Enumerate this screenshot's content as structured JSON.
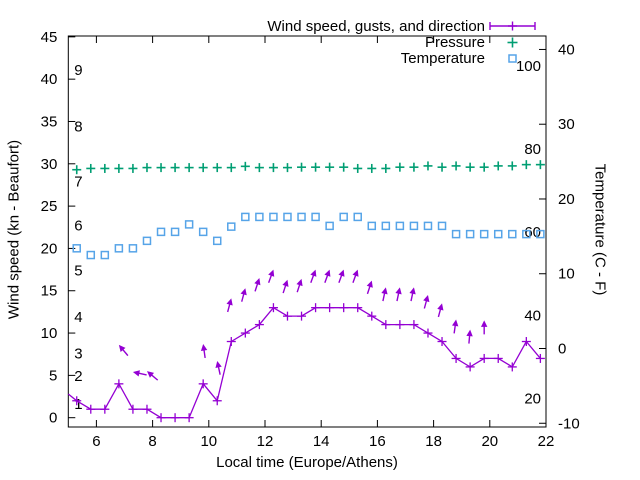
{
  "chart_data": {
    "type": "line",
    "title": "",
    "grid": false,
    "legend_position": "top-right-inside",
    "x_axis": {
      "label": "Local time (Europe/Athens)",
      "min": 5,
      "max": 22,
      "ticks": [
        6,
        8,
        10,
        12,
        14,
        16,
        18,
        20,
        22
      ]
    },
    "y_left": {
      "label": "Wind speed (kn - Beaufort)",
      "min": -1.1,
      "max": 45.1,
      "ticks": [
        0,
        5,
        10,
        15,
        20,
        25,
        30,
        35,
        40,
        45
      ],
      "beaufort_labels": [
        {
          "label": "1",
          "kn": 1.6
        },
        {
          "label": "2",
          "kn": 4.9
        },
        {
          "label": "3",
          "kn": 7.6
        },
        {
          "label": "4",
          "kn": 11.9
        },
        {
          "label": "5",
          "kn": 17.4
        },
        {
          "label": "6",
          "kn": 22.7
        },
        {
          "label": "7",
          "kn": 27.9
        },
        {
          "label": "8",
          "kn": 34.4
        },
        {
          "label": "9",
          "kn": 41.1
        }
      ]
    },
    "y_right": {
      "label": "Temperature (C - F)",
      "min": -10.5,
      "max": 41.8,
      "ticks": [
        -10,
        0,
        10,
        20,
        30,
        40
      ],
      "fahrenheit_labels": [
        {
          "label": "20",
          "f": 20
        },
        {
          "label": "40",
          "f": 40
        },
        {
          "label": "60",
          "f": 60
        },
        {
          "label": "80",
          "f": 80
        },
        {
          "label": "100",
          "f": 100
        }
      ]
    },
    "times": [
      5.3,
      5.8,
      6.3,
      6.8,
      7.3,
      7.8,
      8.3,
      8.8,
      9.3,
      9.8,
      10.3,
      10.8,
      11.3,
      11.8,
      12.3,
      12.8,
      13.3,
      13.8,
      14.3,
      14.8,
      15.3,
      15.8,
      16.3,
      16.8,
      17.3,
      17.8,
      18.3,
      18.8,
      19.3,
      19.8,
      20.3,
      20.8,
      21.3,
      21.8
    ],
    "series": [
      {
        "id": "wind",
        "name": "Wind speed, gusts, and direction",
        "color": "#9400d3",
        "axis": "left",
        "style": "line-with-cross-markers",
        "lead_point": {
          "t": 5.0,
          "kn": 2.8
        },
        "values_kn": [
          2,
          1,
          1,
          4,
          1,
          1,
          0,
          0,
          0,
          4,
          2,
          9,
          10,
          11,
          13,
          12,
          12,
          13,
          13,
          13,
          13,
          12,
          11,
          11,
          11,
          10,
          9,
          7,
          6,
          7,
          7,
          6,
          9,
          7
        ]
      },
      {
        "id": "pressure",
        "name": "Pressure",
        "color": "#009e73",
        "axis": "left",
        "style": "cross-markers",
        "plotted_level_kn": [
          29.3,
          29.45,
          29.45,
          29.45,
          29.45,
          29.55,
          29.55,
          29.55,
          29.55,
          29.55,
          29.55,
          29.55,
          29.7,
          29.55,
          29.55,
          29.55,
          29.6,
          29.6,
          29.6,
          29.6,
          29.45,
          29.45,
          29.45,
          29.6,
          29.6,
          29.75,
          29.6,
          29.75,
          29.6,
          29.6,
          29.75,
          29.75,
          29.9,
          29.9
        ]
      },
      {
        "id": "temperature",
        "name": "Temperature",
        "color": "#56a4e8",
        "axis": "right",
        "style": "open-square-markers",
        "values_c": [
          13.4,
          12.5,
          12.5,
          13.4,
          13.4,
          14.4,
          15.6,
          15.6,
          16.6,
          15.6,
          14.4,
          16.3,
          17.6,
          17.6,
          17.6,
          17.6,
          17.6,
          17.6,
          16.4,
          17.6,
          17.6,
          16.4,
          16.4,
          16.4,
          16.4,
          16.4,
          16.4,
          15.3,
          15.3,
          15.3,
          15.3,
          15.3,
          15.3,
          15.3
        ]
      }
    ],
    "wind_arrows": [
      {
        "t": 6.8,
        "tip_kn": 8.6,
        "angle_deg": -40
      },
      {
        "t": 7.3,
        "tip_kn": 5.4,
        "angle_deg": -78
      },
      {
        "t": 7.8,
        "tip_kn": 5.5,
        "angle_deg": -50
      },
      {
        "t": 9.8,
        "tip_kn": 8.7,
        "angle_deg": -8
      },
      {
        "t": 10.3,
        "tip_kn": 6.7,
        "angle_deg": -12
      },
      {
        "t": 10.8,
        "tip_kn": 14.1,
        "angle_deg": 15
      },
      {
        "t": 11.3,
        "tip_kn": 15.3,
        "angle_deg": 15
      },
      {
        "t": 11.8,
        "tip_kn": 16.5,
        "angle_deg": 18
      },
      {
        "t": 12.3,
        "tip_kn": 17.5,
        "angle_deg": 20
      },
      {
        "t": 12.8,
        "tip_kn": 16.3,
        "angle_deg": 18
      },
      {
        "t": 13.3,
        "tip_kn": 16.4,
        "angle_deg": 18
      },
      {
        "t": 13.8,
        "tip_kn": 17.5,
        "angle_deg": 20
      },
      {
        "t": 14.3,
        "tip_kn": 17.5,
        "angle_deg": 20
      },
      {
        "t": 14.8,
        "tip_kn": 17.5,
        "angle_deg": 20
      },
      {
        "t": 15.3,
        "tip_kn": 17.5,
        "angle_deg": 20
      },
      {
        "t": 15.8,
        "tip_kn": 16.2,
        "angle_deg": 18
      },
      {
        "t": 16.3,
        "tip_kn": 15.4,
        "angle_deg": 12
      },
      {
        "t": 16.8,
        "tip_kn": 15.4,
        "angle_deg": 12
      },
      {
        "t": 17.3,
        "tip_kn": 15.4,
        "angle_deg": 12
      },
      {
        "t": 17.8,
        "tip_kn": 14.5,
        "angle_deg": 15
      },
      {
        "t": 18.3,
        "tip_kn": 13.5,
        "angle_deg": 15
      },
      {
        "t": 18.8,
        "tip_kn": 11.6,
        "angle_deg": 8
      },
      {
        "t": 19.3,
        "tip_kn": 10.4,
        "angle_deg": 5
      },
      {
        "t": 19.8,
        "tip_kn": 11.5,
        "angle_deg": 0
      }
    ]
  }
}
